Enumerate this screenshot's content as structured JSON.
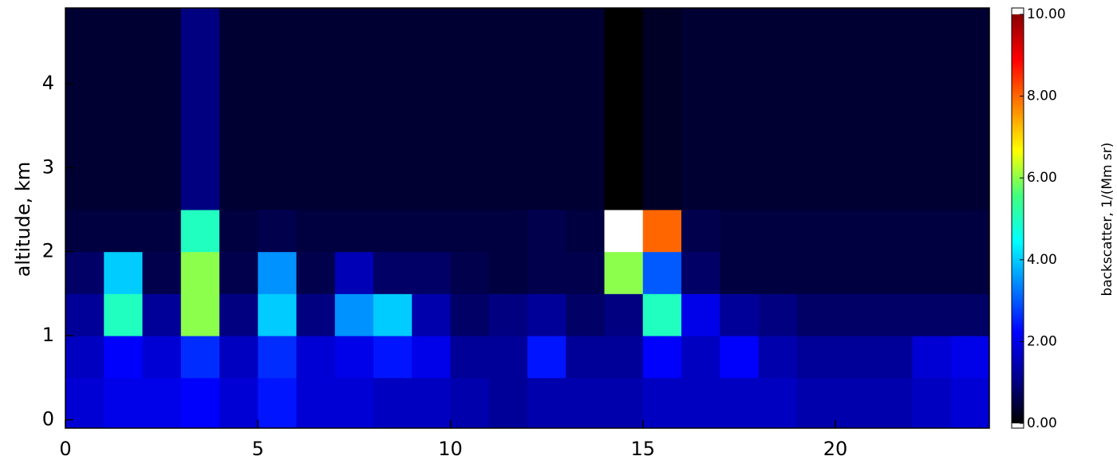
{
  "chart_data": {
    "type": "heatmap",
    "ylabel": "altitude, km",
    "colorbar_label": "backscatter, 1/(Mm sr)",
    "x": [
      0,
      1,
      2,
      3,
      4,
      5,
      6,
      7,
      8,
      9,
      10,
      11,
      12,
      13,
      14,
      15,
      16,
      17,
      18,
      19,
      20,
      21,
      22,
      23,
      24
    ],
    "y": [
      -0.1,
      0.5,
      1,
      1.5,
      2,
      2.5,
      3,
      3.5,
      4,
      4.5,
      4.9
    ],
    "z": [
      [
        1.8,
        2,
        2,
        2.2,
        1.8,
        2.4,
        1.8,
        1.8,
        1.6,
        1.6,
        1.4,
        1.2,
        1.4,
        1.4,
        1.4,
        1.6,
        1.6,
        1.6,
        1.6,
        1.4,
        1.4,
        1.4,
        1.6,
        1.8
      ],
      [
        1.6,
        2.2,
        1.8,
        2.6,
        1.6,
        2.6,
        1.8,
        2,
        2.4,
        2,
        1.2,
        1.2,
        2.4,
        1.2,
        1.2,
        2.2,
        1.6,
        2.2,
        1.4,
        1.2,
        1.2,
        1.2,
        1.8,
        2
      ],
      [
        1.2,
        5,
        1.2,
        6,
        1,
        4,
        1,
        3.5,
        4,
        1.4,
        0.8,
        1,
        1.2,
        0.8,
        1,
        5,
        2,
        1.2,
        1,
        0.8,
        0.8,
        0.8,
        0.8,
        0.8
      ],
      [
        0.8,
        4,
        0.6,
        6,
        0.6,
        3.5,
        0.6,
        1.5,
        0.8,
        0.8,
        0.6,
        0.5,
        0.6,
        0.6,
        6,
        3,
        0.8,
        0.5,
        0.5,
        0.5,
        0.5,
        0.5,
        0.5,
        0.5
      ],
      [
        0.5,
        0.5,
        0.5,
        5,
        0.5,
        0.6,
        0.5,
        0.5,
        0.5,
        0.5,
        0.5,
        0.5,
        0.6,
        0.5,
        11,
        8,
        0.6,
        0.5,
        0.5,
        0.5,
        0.5,
        0.5,
        0.5,
        0.5
      ],
      [
        0.4,
        0.4,
        0.4,
        1,
        0.4,
        0.4,
        0.4,
        0.4,
        0.4,
        0.4,
        0.4,
        0.4,
        0.4,
        0.4,
        0,
        0.3,
        0.4,
        0.4,
        0.4,
        0.4,
        0.4,
        0.4,
        0.4,
        0.4
      ],
      [
        0.4,
        0.4,
        0.4,
        1,
        0.4,
        0.4,
        0.4,
        0.4,
        0.4,
        0.4,
        0.4,
        0.4,
        0.4,
        0.4,
        0,
        0.3,
        0.4,
        0.4,
        0.4,
        0.4,
        0.4,
        0.4,
        0.4,
        0.4
      ],
      [
        0.4,
        0.4,
        0.4,
        1,
        0.4,
        0.4,
        0.4,
        0.4,
        0.4,
        0.4,
        0.4,
        0.4,
        0.4,
        0.4,
        0,
        0.3,
        0.4,
        0.4,
        0.4,
        0.4,
        0.4,
        0.4,
        0.4,
        0.4
      ],
      [
        0.4,
        0.4,
        0.4,
        1,
        0.4,
        0.4,
        0.4,
        0.4,
        0.4,
        0.4,
        0.4,
        0.4,
        0.4,
        0.4,
        0,
        0.3,
        0.4,
        0.4,
        0.4,
        0.4,
        0.4,
        0.4,
        0.4,
        0.4
      ],
      [
        0.4,
        0.4,
        0.4,
        1,
        0.4,
        0.4,
        0.4,
        0.4,
        0.4,
        0.4,
        0.4,
        0.4,
        0.4,
        0.4,
        0,
        0.3,
        0.4,
        0.4,
        0.4,
        0.4,
        0.4,
        0.4,
        0.4,
        0.4
      ]
    ],
    "xlim": [
      0,
      24
    ],
    "xticks": [
      0,
      5,
      10,
      15,
      20
    ],
    "ylim": [
      -0.1,
      4.9
    ],
    "yticks": [
      0,
      1,
      2,
      3,
      4
    ],
    "clim": [
      0,
      10
    ],
    "cticks": [
      {
        "value": 0,
        "label": "0.00"
      },
      {
        "value": 2,
        "label": "2.00"
      },
      {
        "value": 4,
        "label": "4.00"
      },
      {
        "value": 6,
        "label": "6.00"
      },
      {
        "value": 8,
        "label": "8.00"
      },
      {
        "value": 10,
        "label": "10.00"
      }
    ],
    "colormap": [
      "#000000",
      "#00008f",
      "#0000ff",
      "#0080ff",
      "#00ffff",
      "#40ff80",
      "#ffff00",
      "#ff8000",
      "#ff0000",
      "#8b0000"
    ],
    "over_color": "#ffffff"
  }
}
